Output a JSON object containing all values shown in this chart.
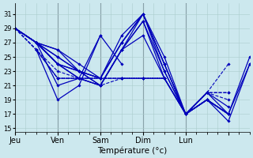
{
  "xlabel": "Température (°c)",
  "bg_color": "#cce8ee",
  "grid_color": "#aacccc",
  "line_color": "#0000bb",
  "ylim": [
    14.5,
    32.5
  ],
  "yticks": [
    15,
    17,
    19,
    21,
    23,
    25,
    27,
    29,
    31
  ],
  "xlim": [
    0,
    44
  ],
  "day_ticks": [
    0,
    8,
    16,
    24,
    32,
    40
  ],
  "day_labels": [
    "Jeu",
    "Ven",
    "Sam",
    "Dim",
    "Lun",
    ""
  ],
  "series": [
    {
      "x": [
        0,
        4,
        8,
        12,
        16,
        20,
        24,
        28,
        32,
        36,
        40,
        44
      ],
      "y": [
        29,
        27,
        26,
        24,
        22,
        28,
        31,
        25,
        17,
        19,
        17,
        25
      ],
      "style": "-",
      "lw": 0.9
    },
    {
      "x": [
        0,
        4,
        8,
        12,
        16,
        20,
        24,
        28,
        32,
        36,
        40,
        44
      ],
      "y": [
        29,
        27,
        26,
        23,
        22,
        27,
        31,
        24,
        17,
        19,
        17,
        24
      ],
      "style": "-",
      "lw": 0.9
    },
    {
      "x": [
        0,
        4,
        8,
        12,
        16,
        20,
        24,
        28,
        32,
        36,
        40,
        44
      ],
      "y": [
        29,
        27,
        25,
        23,
        22,
        27,
        31,
        24,
        17,
        19,
        16,
        24
      ],
      "style": "-",
      "lw": 0.9
    },
    {
      "x": [
        0,
        4,
        8,
        12,
        16,
        20,
        24,
        28,
        32,
        36,
        40
      ],
      "y": [
        29,
        27,
        25,
        23,
        22,
        27,
        31,
        24,
        17,
        19,
        17
      ],
      "style": "-",
      "lw": 0.9
    },
    {
      "x": [
        0,
        4,
        8,
        12,
        16,
        20,
        24,
        28,
        32,
        36,
        40
      ],
      "y": [
        29,
        27,
        24,
        23,
        21,
        26,
        31,
        23,
        17,
        19,
        17
      ],
      "style": "-",
      "lw": 0.9
    },
    {
      "x": [
        0,
        4,
        8,
        12,
        16,
        20,
        24,
        28,
        32,
        36,
        40
      ],
      "y": [
        29,
        27,
        24,
        23,
        21,
        26,
        30,
        23,
        17,
        19,
        17
      ],
      "style": "-",
      "lw": 0.9
    },
    {
      "x": [
        0,
        4,
        8,
        12,
        16,
        20,
        24,
        28,
        32,
        36,
        40
      ],
      "y": [
        29,
        27,
        24,
        22,
        21,
        26,
        30,
        22,
        17,
        20,
        17
      ],
      "style": "-",
      "lw": 0.9
    },
    {
      "x": [
        0,
        4,
        8,
        12,
        16,
        20,
        24,
        28,
        32,
        36,
        40
      ],
      "y": [
        29,
        27,
        24,
        22,
        21,
        26,
        28,
        22,
        17,
        20,
        18
      ],
      "style": "-",
      "lw": 0.9
    },
    {
      "x": [
        0,
        4,
        8,
        12,
        16,
        20,
        24,
        28,
        32,
        36,
        40
      ],
      "y": [
        29,
        26,
        23,
        22,
        21,
        22,
        22,
        22,
        17,
        20,
        19
      ],
      "style": "--",
      "lw": 0.8
    },
    {
      "x": [
        0,
        4,
        8,
        12,
        16,
        20,
        24,
        28,
        32,
        36,
        40
      ],
      "y": [
        29,
        26,
        22,
        22,
        22,
        22,
        22,
        22,
        17,
        20,
        20
      ],
      "style": "--",
      "lw": 0.8
    },
    {
      "x": [
        0,
        4,
        8,
        12,
        16,
        20,
        24,
        28,
        32,
        36,
        40
      ],
      "y": [
        29,
        26,
        22,
        22,
        22,
        22,
        22,
        22,
        17,
        20,
        20
      ],
      "style": "--",
      "lw": 0.8
    },
    {
      "x": [
        4,
        8,
        12,
        16,
        20,
        24,
        28,
        32,
        36,
        40
      ],
      "y": [
        26,
        22,
        22,
        22,
        22,
        22,
        22,
        17,
        20,
        24
      ],
      "style": "--",
      "lw": 0.8
    },
    {
      "x": [
        4,
        8,
        12,
        16
      ],
      "y": [
        26,
        19,
        21,
        28
      ],
      "style": "-",
      "lw": 0.9
    },
    {
      "x": [
        4,
        8,
        12,
        16,
        20
      ],
      "y": [
        27,
        21,
        22,
        28,
        24
      ],
      "style": "-",
      "lw": 0.9
    }
  ]
}
